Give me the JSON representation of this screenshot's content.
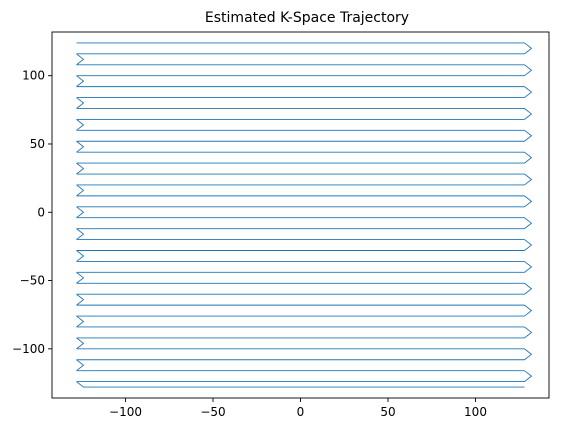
{
  "chart_data": {
    "type": "line",
    "title": "Estimated K-Space Trajectory",
    "xlabel": "",
    "ylabel": "",
    "xlim": [
      -142,
      142
    ],
    "ylim": [
      -136,
      132
    ],
    "grid": false,
    "legend": "none",
    "x_ticks": [
      -100,
      -50,
      0,
      50,
      100
    ],
    "x_tick_labels": [
      "−100",
      "−50",
      "0",
      "50",
      "100"
    ],
    "y_ticks": [
      -100,
      -50,
      0,
      50,
      100
    ],
    "y_tick_labels": [
      "−100",
      "−50",
      "0",
      "50",
      "100"
    ],
    "series": [
      {
        "color": "#1f77b4",
        "pattern": "EPI raster: alternating horizontal lines with short diagonal blips at the turnarounds",
        "line_x_range": [
          -128,
          128
        ],
        "blip_width": 4,
        "line_y_values": [
          124,
          116,
          108,
          100,
          92,
          84,
          76,
          68,
          60,
          52,
          44,
          36,
          28,
          20,
          12,
          4,
          -4,
          -12,
          -20,
          -28,
          -36,
          -44,
          -52,
          -60,
          -68,
          -76,
          -84,
          -92,
          -100,
          -108,
          -116,
          -124
        ]
      }
    ]
  }
}
